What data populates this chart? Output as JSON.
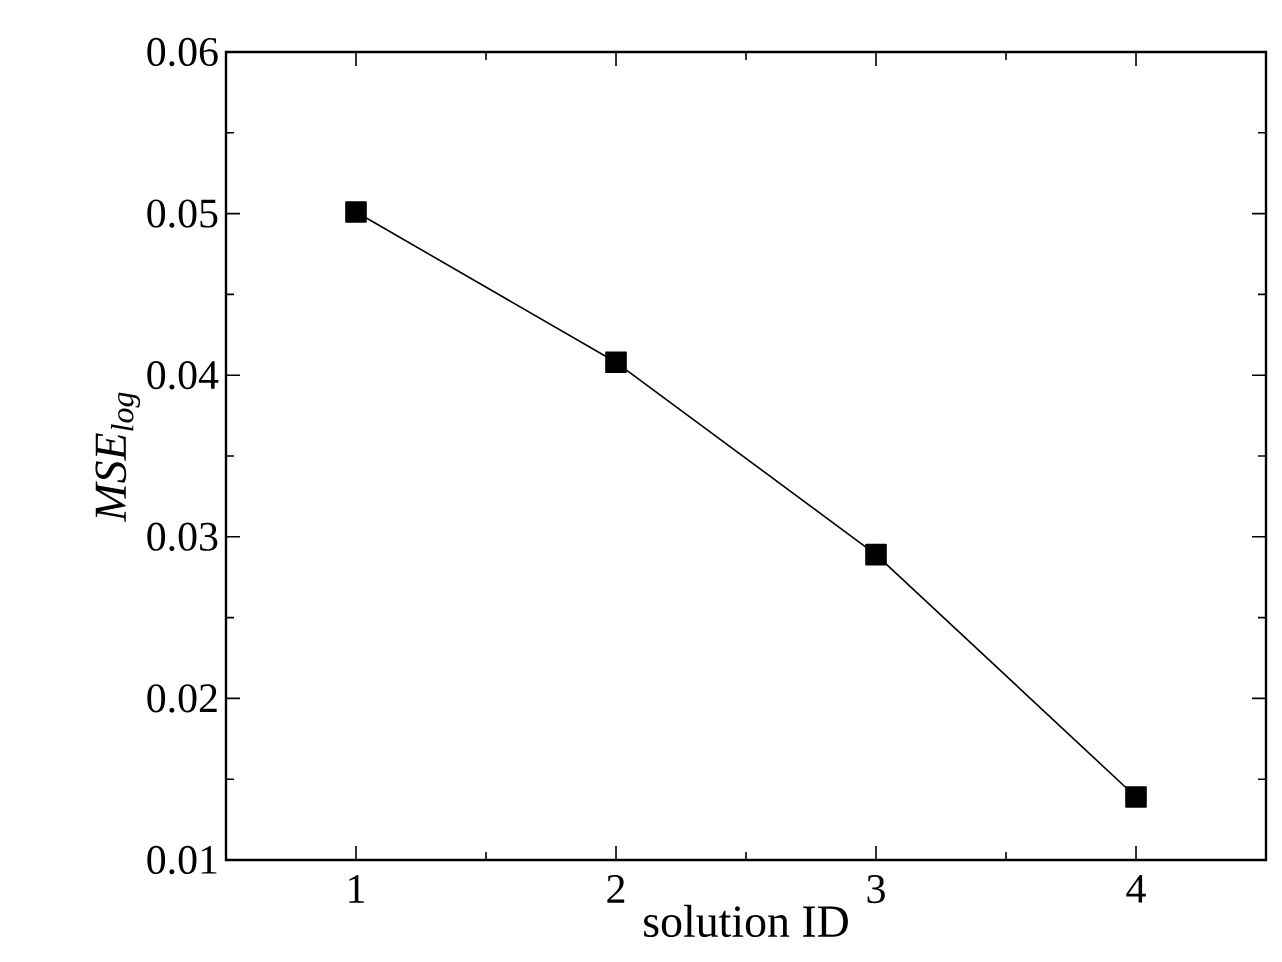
{
  "chart_data": {
    "type": "line",
    "xlabel": "solution ID",
    "ylabel": "MSE$_{log}$",
    "x": [
      1,
      2,
      3,
      4
    ],
    "series": [
      {
        "color": "#000000",
        "values": [
          0.0501,
          0.0408,
          0.0289,
          0.0139
        ]
      }
    ],
    "xlim": [
      0.5,
      4.5
    ],
    "xticks": [
      1,
      2,
      3,
      4
    ],
    "ylim": [
      0.01,
      0.06
    ],
    "yticks": [
      0.01,
      0.02,
      0.03,
      0.04,
      0.05,
      0.06
    ],
    "marker": "square",
    "line_style": "solid"
  }
}
